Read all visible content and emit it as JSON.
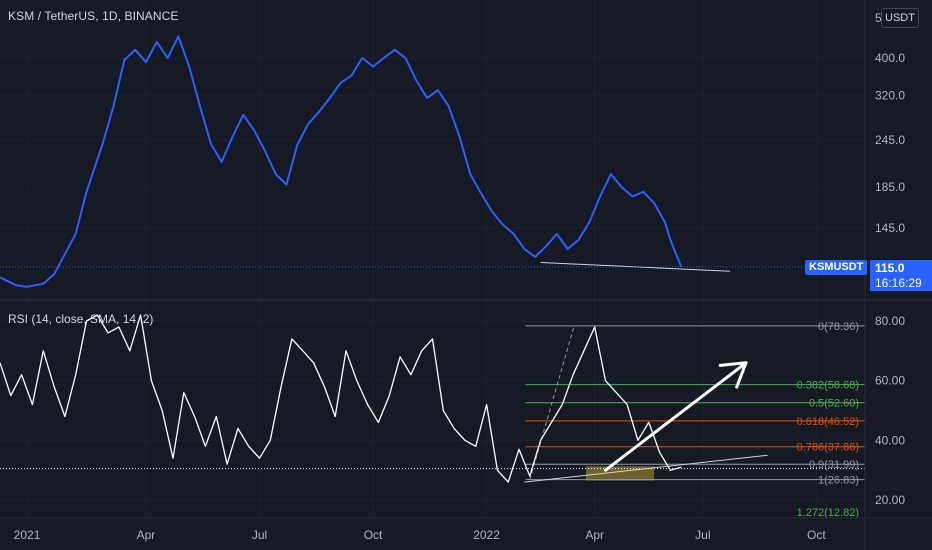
{
  "header": {
    "title": "KSM / TetherUS, 1D, BINANCE",
    "currency_button": "USDT"
  },
  "indicator": {
    "legend": "RSI (14, close, SMA, 14, 2)"
  },
  "price_panel": {
    "symbol_badge": "KSMUSDT",
    "last_price": "115.0",
    "countdown": "16:16:29"
  },
  "chart_data": [
    {
      "type": "line",
      "name": "price",
      "series": [
        {
          "values": [
            [
              0,
              108
            ],
            [
              3,
              103
            ],
            [
              5,
              102
            ],
            [
              8,
              104
            ],
            [
              10,
              110
            ],
            [
              14,
              140
            ],
            [
              16,
              180
            ],
            [
              19,
              240
            ],
            [
              21,
              300
            ],
            [
              23,
              395
            ],
            [
              25,
              420
            ],
            [
              27,
              390
            ],
            [
              29,
              440
            ],
            [
              31,
              400
            ],
            [
              33,
              455
            ],
            [
              35,
              380
            ],
            [
              37,
              300
            ],
            [
              39,
              240
            ],
            [
              41,
              215
            ],
            [
              43,
              250
            ],
            [
              45,
              285
            ],
            [
              47,
              260
            ],
            [
              49,
              230
            ],
            [
              51,
              200
            ],
            [
              53,
              188
            ],
            [
              55,
              238
            ],
            [
              57,
              270
            ],
            [
              59,
              290
            ],
            [
              61,
              315
            ],
            [
              63,
              345
            ],
            [
              65,
              360
            ],
            [
              67,
              400
            ],
            [
              69,
              380
            ],
            [
              71,
              400
            ],
            [
              73,
              420
            ],
            [
              75,
              400
            ],
            [
              77,
              350
            ],
            [
              79,
              315
            ],
            [
              81,
              330
            ],
            [
              83,
              300
            ],
            [
              85,
              250
            ],
            [
              87,
              200
            ],
            [
              89,
              178
            ],
            [
              91,
              160
            ],
            [
              93,
              148
            ],
            [
              95,
              140
            ],
            [
              97,
              128
            ],
            [
              99,
              122
            ],
            [
              101,
              130
            ],
            [
              103,
              140
            ],
            [
              105,
              128
            ],
            [
              107,
              135
            ],
            [
              109,
              150
            ],
            [
              111,
              175
            ],
            [
              113,
              200
            ],
            [
              115,
              185
            ],
            [
              117,
              175
            ],
            [
              119,
              180
            ],
            [
              121,
              168
            ],
            [
              123,
              150
            ],
            [
              124,
              135
            ],
            [
              126,
              115
            ]
          ]
        }
      ],
      "trendline": [
        [
          100,
          118
        ],
        [
          135,
          112
        ]
      ],
      "ytick_labels": [
        "400.0",
        "320.0",
        "245.0",
        "185.0",
        "145.0"
      ],
      "ytick_values": [
        400,
        320,
        245,
        185,
        145
      ]
    },
    {
      "type": "line",
      "name": "RSI",
      "series": [
        {
          "values": [
            [
              0,
              66
            ],
            [
              2,
              55
            ],
            [
              4,
              62
            ],
            [
              6,
              52
            ],
            [
              8,
              70
            ],
            [
              10,
              58
            ],
            [
              12,
              48
            ],
            [
              14,
              62
            ],
            [
              16,
              80
            ],
            [
              18,
              82
            ],
            [
              20,
              76
            ],
            [
              22,
              78
            ],
            [
              24,
              70
            ],
            [
              26,
              82
            ],
            [
              28,
              60
            ],
            [
              30,
              50
            ],
            [
              32,
              34
            ],
            [
              34,
              56
            ],
            [
              36,
              48
            ],
            [
              38,
              38
            ],
            [
              40,
              48
            ],
            [
              42,
              32
            ],
            [
              44,
              44
            ],
            [
              46,
              38
            ],
            [
              48,
              34
            ],
            [
              50,
              40
            ],
            [
              52,
              58
            ],
            [
              54,
              74
            ],
            [
              56,
              70
            ],
            [
              58,
              66
            ],
            [
              60,
              58
            ],
            [
              62,
              48
            ],
            [
              64,
              70
            ],
            [
              66,
              60
            ],
            [
              68,
              52
            ],
            [
              70,
              46
            ],
            [
              72,
              55
            ],
            [
              74,
              68
            ],
            [
              76,
              62
            ],
            [
              78,
              70
            ],
            [
              80,
              74
            ],
            [
              82,
              50
            ],
            [
              84,
              44
            ],
            [
              86,
              40
            ],
            [
              88,
              38
            ],
            [
              90,
              52
            ],
            [
              92,
              30
            ],
            [
              94,
              26
            ],
            [
              96,
              37
            ],
            [
              98,
              28
            ],
            [
              100,
              40
            ],
            [
              102,
              46
            ],
            [
              104,
              52
            ],
            [
              106,
              62
            ],
            [
              108,
              70
            ],
            [
              110,
              78
            ],
            [
              112,
              60
            ],
            [
              114,
              56
            ],
            [
              116,
              52
            ],
            [
              118,
              40
            ],
            [
              120,
              46
            ],
            [
              122,
              36
            ],
            [
              124,
              30
            ],
            [
              126,
              31
            ]
          ]
        }
      ],
      "trendline": [
        [
          97,
          26
        ],
        [
          142,
          35
        ]
      ],
      "ytick_labels": [
        "80.00",
        "60.00",
        "40.00",
        "20.00"
      ],
      "ytick_values": [
        80,
        60,
        40,
        20
      ],
      "fib_levels": [
        {
          "label": "0(78.36)",
          "value": 78.36,
          "color": "#9598a1"
        },
        {
          "label": "0.382(58.68)",
          "value": 58.68,
          "color": "#4caf50"
        },
        {
          "label": "0.5(52.60)",
          "value": 52.6,
          "color": "#4caf50"
        },
        {
          "label": "0.618(46.52)",
          "value": 46.52,
          "color": "#e65100"
        },
        {
          "label": "0.786(37.86)",
          "value": 37.86,
          "color": "#e65100"
        },
        {
          "label": "0.9(31.99)",
          "value": 31.99,
          "color": "#9598a1"
        },
        {
          "label": "1(26.83)",
          "value": 26.83,
          "color": "#9598a1"
        },
        {
          "label": "1.272(12.82)",
          "value": 12.82,
          "color": "#4caf50"
        }
      ],
      "arrow": {
        "from": [
          112,
          30
        ],
        "to": [
          138,
          66
        ]
      }
    }
  ],
  "x_axis": {
    "labels": [
      "2021",
      "Apr",
      "Jul",
      "Oct",
      "2022",
      "Apr",
      "Jul",
      "Oct"
    ],
    "values": [
      5,
      27,
      48,
      69,
      90,
      110,
      130,
      151
    ]
  },
  "price_axis_top_label": "5",
  "colors": {
    "price_line": "#2962ff",
    "rsi_line": "#ffffff",
    "badge": "#2962ff",
    "background": "#161a25"
  }
}
